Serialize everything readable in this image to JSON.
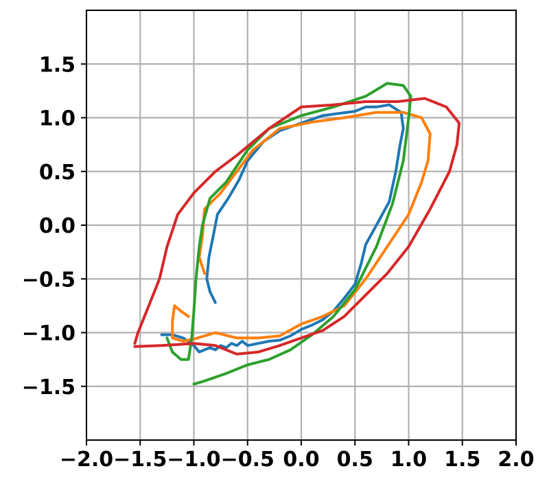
{
  "chart_data": {
    "type": "line",
    "title": "",
    "xlabel": "",
    "ylabel": "",
    "xlim": [
      -2.0,
      2.0
    ],
    "ylim": [
      -2.0,
      2.0
    ],
    "grid": true,
    "legend": "none",
    "x_ticks": [
      {
        "value": -2.0,
        "label": "−2.0"
      },
      {
        "value": -1.5,
        "label": "−1.5"
      },
      {
        "value": -1.0,
        "label": "−1.0"
      },
      {
        "value": -0.5,
        "label": "−0.5"
      },
      {
        "value": 0.0,
        "label": "0.0"
      },
      {
        "value": 0.5,
        "label": "0.5"
      },
      {
        "value": 1.0,
        "label": "1.0"
      },
      {
        "value": 1.5,
        "label": "1.5"
      },
      {
        "value": 2.0,
        "label": "2.0"
      }
    ],
    "y_ticks": [
      {
        "value": -1.5,
        "label": "−1.5"
      },
      {
        "value": -1.0,
        "label": "−1.0"
      },
      {
        "value": -0.5,
        "label": "−0.5"
      },
      {
        "value": 0.0,
        "label": "0.0"
      },
      {
        "value": 0.5,
        "label": "0.5"
      },
      {
        "value": 1.0,
        "label": "1.0"
      },
      {
        "value": 1.5,
        "label": "1.5"
      }
    ],
    "series": [
      {
        "color": "#1f77b4",
        "points": [
          [
            -1.3,
            -1.02
          ],
          [
            -1.2,
            -1.02
          ],
          [
            -1.1,
            -1.05
          ],
          [
            -1.0,
            -1.12
          ],
          [
            -0.95,
            -1.18
          ],
          [
            -0.9,
            -1.16
          ],
          [
            -0.85,
            -1.14
          ],
          [
            -0.8,
            -1.16
          ],
          [
            -0.75,
            -1.12
          ],
          [
            -0.7,
            -1.14
          ],
          [
            -0.65,
            -1.1
          ],
          [
            -0.6,
            -1.12
          ],
          [
            -0.55,
            -1.08
          ],
          [
            -0.5,
            -1.12
          ],
          [
            -0.4,
            -1.1
          ],
          [
            -0.3,
            -1.08
          ],
          [
            -0.2,
            -1.07
          ],
          [
            -0.1,
            -1.03
          ],
          [
            0.0,
            -0.97
          ],
          [
            0.1,
            -0.93
          ],
          [
            0.2,
            -0.88
          ],
          [
            0.3,
            -0.8
          ],
          [
            0.4,
            -0.68
          ],
          [
            0.5,
            -0.55
          ],
          [
            0.56,
            -0.35
          ],
          [
            0.6,
            -0.18
          ],
          [
            0.7,
            0.0
          ],
          [
            0.82,
            0.22
          ],
          [
            0.88,
            0.5
          ],
          [
            0.92,
            0.75
          ],
          [
            0.95,
            0.9
          ],
          [
            0.93,
            1.05
          ],
          [
            0.82,
            1.12
          ],
          [
            0.7,
            1.1
          ],
          [
            0.6,
            1.1
          ],
          [
            0.5,
            1.06
          ],
          [
            0.35,
            1.04
          ],
          [
            0.2,
            1.02
          ],
          [
            0.0,
            0.95
          ],
          [
            -0.2,
            0.88
          ],
          [
            -0.35,
            0.78
          ],
          [
            -0.5,
            0.6
          ],
          [
            -0.58,
            0.42
          ],
          [
            -0.68,
            0.25
          ],
          [
            -0.78,
            0.1
          ],
          [
            -0.82,
            -0.1
          ],
          [
            -0.86,
            -0.3
          ],
          [
            -0.88,
            -0.5
          ],
          [
            -0.85,
            -0.62
          ],
          [
            -0.8,
            -0.72
          ]
        ]
      },
      {
        "color": "#ff7f0e",
        "points": [
          [
            -1.05,
            -0.85
          ],
          [
            -1.12,
            -0.8
          ],
          [
            -1.18,
            -0.75
          ],
          [
            -1.2,
            -0.9
          ],
          [
            -1.2,
            -1.05
          ],
          [
            -1.1,
            -1.08
          ],
          [
            -1.0,
            -1.06
          ],
          [
            -0.8,
            -1.0
          ],
          [
            -0.6,
            -1.05
          ],
          [
            -0.4,
            -1.05
          ],
          [
            -0.2,
            -1.03
          ],
          [
            0.0,
            -0.92
          ],
          [
            0.2,
            -0.85
          ],
          [
            0.4,
            -0.75
          ],
          [
            0.6,
            -0.5
          ],
          [
            0.8,
            -0.2
          ],
          [
            1.0,
            0.1
          ],
          [
            1.12,
            0.4
          ],
          [
            1.18,
            0.6
          ],
          [
            1.2,
            0.85
          ],
          [
            1.12,
            1.0
          ],
          [
            0.95,
            1.05
          ],
          [
            0.7,
            1.05
          ],
          [
            0.4,
            1.0
          ],
          [
            0.1,
            0.96
          ],
          [
            -0.2,
            0.9
          ],
          [
            -0.45,
            0.7
          ],
          [
            -0.6,
            0.5
          ],
          [
            -0.75,
            0.3
          ],
          [
            -0.9,
            0.15
          ],
          [
            -0.92,
            -0.1
          ],
          [
            -0.95,
            -0.3
          ],
          [
            -0.9,
            -0.45
          ]
        ]
      },
      {
        "color": "#2ca02c",
        "points": [
          [
            -1.0,
            -1.48
          ],
          [
            -0.9,
            -1.45
          ],
          [
            -0.7,
            -1.38
          ],
          [
            -0.5,
            -1.3
          ],
          [
            -0.3,
            -1.25
          ],
          [
            -0.1,
            -1.16
          ],
          [
            0.1,
            -1.02
          ],
          [
            0.3,
            -0.85
          ],
          [
            0.5,
            -0.6
          ],
          [
            0.7,
            -0.2
          ],
          [
            0.85,
            0.2
          ],
          [
            0.95,
            0.6
          ],
          [
            1.0,
            1.0
          ],
          [
            1.02,
            1.2
          ],
          [
            0.95,
            1.3
          ],
          [
            0.8,
            1.32
          ],
          [
            0.6,
            1.2
          ],
          [
            0.3,
            1.1
          ],
          [
            0.0,
            1.02
          ],
          [
            -0.3,
            0.9
          ],
          [
            -0.5,
            0.7
          ],
          [
            -0.6,
            0.55
          ],
          [
            -0.7,
            0.4
          ],
          [
            -0.85,
            0.25
          ],
          [
            -0.92,
            0.0
          ],
          [
            -0.95,
            -0.2
          ],
          [
            -0.98,
            -0.5
          ],
          [
            -1.0,
            -0.8
          ],
          [
            -1.02,
            -1.05
          ],
          [
            -1.05,
            -1.25
          ],
          [
            -1.12,
            -1.25
          ],
          [
            -1.2,
            -1.18
          ],
          [
            -1.25,
            -1.05
          ]
        ]
      },
      {
        "color": "#d62728",
        "points": [
          [
            -1.55,
            -1.13
          ],
          [
            -1.3,
            -1.12
          ],
          [
            -1.0,
            -1.1
          ],
          [
            -0.8,
            -1.12
          ],
          [
            -0.6,
            -1.2
          ],
          [
            -0.4,
            -1.18
          ],
          [
            -0.2,
            -1.12
          ],
          [
            0.0,
            -1.05
          ],
          [
            0.2,
            -0.98
          ],
          [
            0.4,
            -0.85
          ],
          [
            0.6,
            -0.65
          ],
          [
            0.8,
            -0.45
          ],
          [
            1.0,
            -0.2
          ],
          [
            1.2,
            0.15
          ],
          [
            1.38,
            0.5
          ],
          [
            1.45,
            0.75
          ],
          [
            1.47,
            0.95
          ],
          [
            1.35,
            1.1
          ],
          [
            1.15,
            1.18
          ],
          [
            0.9,
            1.15
          ],
          [
            0.6,
            1.15
          ],
          [
            0.3,
            1.12
          ],
          [
            0.0,
            1.1
          ],
          [
            -0.3,
            0.9
          ],
          [
            -0.6,
            0.65
          ],
          [
            -0.8,
            0.5
          ],
          [
            -1.0,
            0.3
          ],
          [
            -1.15,
            0.1
          ],
          [
            -1.25,
            -0.2
          ],
          [
            -1.32,
            -0.5
          ],
          [
            -1.42,
            -0.75
          ],
          [
            -1.52,
            -1.0
          ],
          [
            -1.55,
            -1.1
          ]
        ]
      }
    ]
  }
}
